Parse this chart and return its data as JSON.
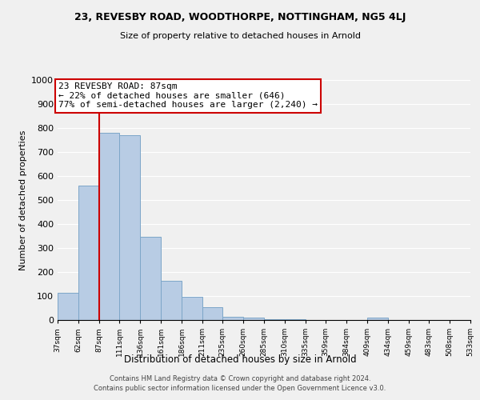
{
  "title": "23, REVESBY ROAD, WOODTHORPE, NOTTINGHAM, NG5 4LJ",
  "subtitle": "Size of property relative to detached houses in Arnold",
  "xlabel": "Distribution of detached houses by size in Arnold",
  "ylabel": "Number of detached properties",
  "bar_color": "#b8cce4",
  "bar_edge_color": "#7da6c8",
  "bins": [
    37,
    62,
    87,
    111,
    136,
    161,
    186,
    211,
    235,
    260,
    285,
    310,
    335,
    359,
    384,
    409,
    434,
    459,
    483,
    508,
    533
  ],
  "counts": [
    115,
    560,
    780,
    770,
    348,
    165,
    98,
    52,
    15,
    10,
    5,
    5,
    0,
    0,
    0,
    10,
    0,
    0,
    0,
    0
  ],
  "tick_labels": [
    "37sqm",
    "62sqm",
    "87sqm",
    "111sqm",
    "136sqm",
    "161sqm",
    "186sqm",
    "211sqm",
    "235sqm",
    "260sqm",
    "285sqm",
    "310sqm",
    "335sqm",
    "359sqm",
    "384sqm",
    "409sqm",
    "434sqm",
    "459sqm",
    "483sqm",
    "508sqm",
    "533sqm"
  ],
  "property_line_x": 87,
  "property_line_color": "#cc0000",
  "annotation_line1": "23 REVESBY ROAD: 87sqm",
  "annotation_line2": "← 22% of detached houses are smaller (646)",
  "annotation_line3": "77% of semi-detached houses are larger (2,240) →",
  "annotation_box_color": "#ffffff",
  "annotation_border_color": "#cc0000",
  "ylim": [
    0,
    1000
  ],
  "yticks": [
    0,
    100,
    200,
    300,
    400,
    500,
    600,
    700,
    800,
    900,
    1000
  ],
  "footer_line1": "Contains HM Land Registry data © Crown copyright and database right 2024.",
  "footer_line2": "Contains public sector information licensed under the Open Government Licence v3.0.",
  "background_color": "#f0f0f0",
  "grid_color": "#ffffff",
  "figsize": [
    6.0,
    5.0
  ],
  "dpi": 100
}
